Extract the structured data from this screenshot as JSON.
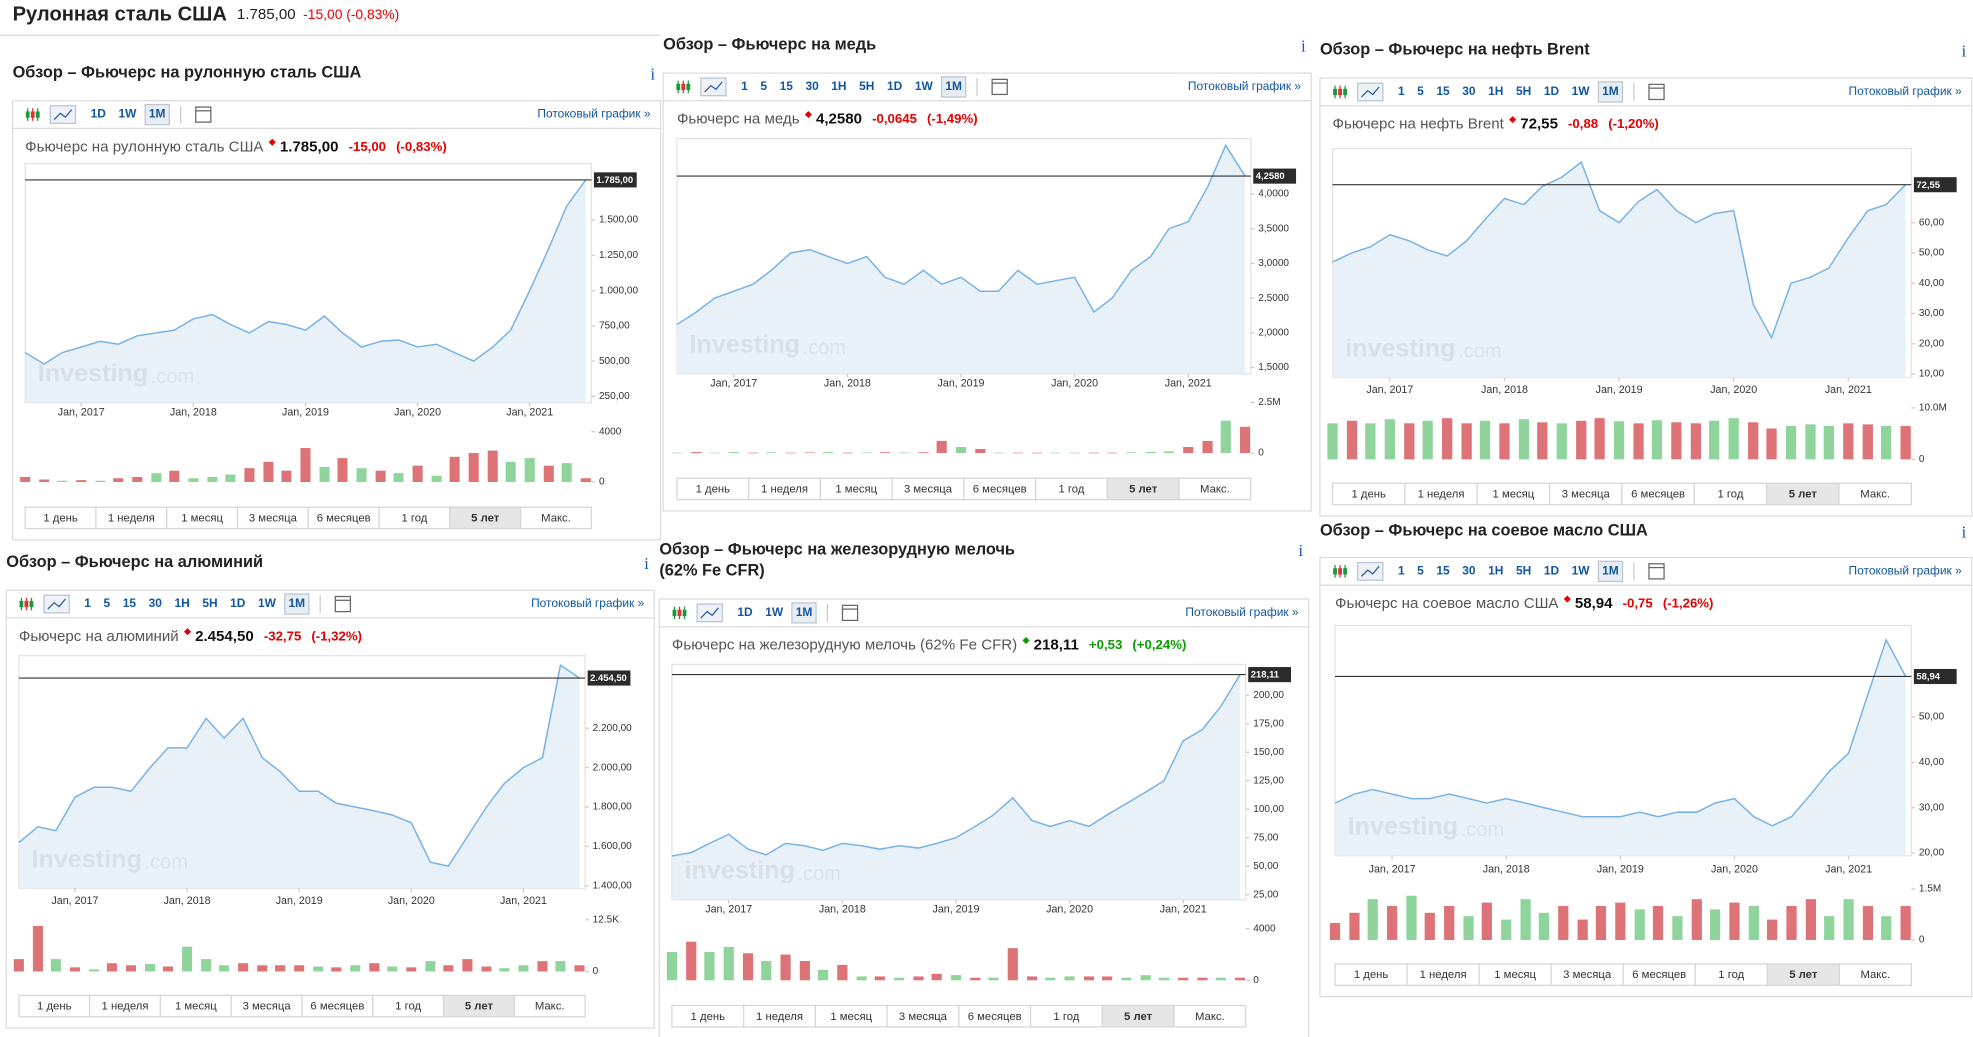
{
  "header": {
    "title": "Рулонная сталь США",
    "price": "1.785,00",
    "change": "-15,00 (-0,83%)"
  },
  "info_icon": "i",
  "streaming_label": "Потоковый график »",
  "watermark_suffix": ".com",
  "period_buttons": [
    "1 день",
    "1 неделя",
    "1 месяц",
    "3 месяца",
    "6 месяцев",
    "1 год",
    "5 лет",
    "Макс."
  ],
  "line_color": "#7ab3e3",
  "area_color": "#e4eef7",
  "up_color": "#8fd49b",
  "down_color": "#dd7376",
  "x": [
    2016.5,
    2016.67,
    2016.83,
    2017,
    2017.17,
    2017.33,
    2017.5,
    2017.67,
    2017.83,
    2018,
    2018.17,
    2018.33,
    2018.5,
    2018.67,
    2018.83,
    2019,
    2019.17,
    2019.33,
    2019.5,
    2019.67,
    2019.83,
    2020,
    2020.17,
    2020.33,
    2020.5,
    2020.67,
    2020.83,
    2021,
    2021.17,
    2021.33,
    2021.5
  ],
  "xlim": [
    2016.5,
    2021.55
  ],
  "xticks": [
    {
      "value": 2017,
      "label": "Jan, 2017"
    },
    {
      "value": 2018,
      "label": "Jan, 2018"
    },
    {
      "value": 2019,
      "label": "Jan, 2019"
    },
    {
      "value": 2020,
      "label": "Jan, 2020"
    },
    {
      "value": 2021,
      "label": "Jan, 2021"
    }
  ],
  "panels": [
    {
      "type": "line",
      "title_lines": [
        "Обзор – Фьючерс на рулонную сталь США"
      ],
      "intervals": [
        "1D",
        "1W",
        "1M"
      ],
      "watermark": "Investing",
      "quote": {
        "name": "Фьючерс на рулонную сталь США",
        "price": "1.785,00",
        "change": "-15,00",
        "percent": "(-0,83%)",
        "change_color": "#e40000"
      },
      "ylim": [
        205,
        1900
      ],
      "yticks": [
        {
          "value": 250,
          "label": "250,00"
        },
        {
          "value": 500,
          "label": "500,00"
        },
        {
          "value": 750,
          "label": "750,00"
        },
        {
          "value": 1000,
          "label": "1.000,00"
        },
        {
          "value": 1250,
          "label": "1.250,00"
        },
        {
          "value": 1500,
          "label": "1.500,00"
        }
      ],
      "values": [
        560,
        480,
        560,
        600,
        640,
        620,
        680,
        700,
        720,
        800,
        830,
        760,
        700,
        780,
        760,
        720,
        820,
        700,
        600,
        640,
        650,
        600,
        620,
        560,
        500,
        600,
        720,
        1000,
        1300,
        1600,
        1785
      ],
      "volume_ylim": [
        0,
        4500
      ],
      "volume_yticks": [
        0,
        4000
      ],
      "volume": [
        400,
        200,
        100,
        150,
        100,
        300,
        400,
        700,
        900,
        300,
        400,
        600,
        1100,
        1600,
        900,
        2700,
        1200,
        1900,
        1100,
        900,
        700,
        1300,
        500,
        2000,
        2300,
        2500,
        1600,
        1900,
        1300,
        1500,
        300
      ],
      "volume_direction": [
        "down",
        "down",
        "up",
        "down",
        "up",
        "down",
        "down",
        "up",
        "down",
        "up",
        "up",
        "up",
        "down",
        "down",
        "down",
        "down",
        "up",
        "down",
        "up",
        "down",
        "up",
        "down",
        "up",
        "down",
        "down",
        "down",
        "up",
        "up",
        "down",
        "up",
        "down"
      ]
    },
    {
      "type": "line",
      "title_lines": [
        "Обзор – Фьючерс на медь"
      ],
      "intervals": [
        "1",
        "5",
        "15",
        "30",
        "1H",
        "5H",
        "1D",
        "1W",
        "1M"
      ],
      "watermark": "Investing",
      "quote": {
        "name": "Фьючерс на медь",
        "price": "4,2580",
        "change": "-0,0645",
        "percent": "(-1,49%)",
        "change_color": "#e40000"
      },
      "ylim": [
        1.41,
        4.8
      ],
      "yticks": [
        {
          "value": 1.5,
          "label": "1,5000"
        },
        {
          "value": 2,
          "label": "2,0000"
        },
        {
          "value": 2.5,
          "label": "2,5000"
        },
        {
          "value": 3,
          "label": "3,0000"
        },
        {
          "value": 3.5,
          "label": "3,5000"
        },
        {
          "value": 4,
          "label": "4,0000"
        }
      ],
      "values": [
        2.12,
        2.3,
        2.5,
        2.6,
        2.7,
        2.9,
        3.15,
        3.2,
        3.1,
        3.0,
        3.1,
        2.8,
        2.7,
        2.9,
        2.7,
        2.8,
        2.6,
        2.6,
        2.9,
        2.7,
        2.75,
        2.8,
        2.3,
        2.5,
        2.9,
        3.1,
        3.5,
        3.6,
        4.1,
        4.7,
        4.258
      ],
      "volume_ylim": [
        0,
        2800000
      ],
      "volume_yticks": [
        0,
        {
          "value": 2500000,
          "label": "2.5M"
        }
      ],
      "volume": [
        20000,
        50000,
        20000,
        50000,
        20000,
        40000,
        20000,
        30000,
        50000,
        20000,
        30000,
        40000,
        30000,
        40000,
        600000,
        300000,
        200000,
        20000,
        20000,
        20000,
        20000,
        20000,
        20000,
        20000,
        40000,
        60000,
        80000,
        300000,
        600000,
        1600000,
        1300000
      ],
      "volume_direction": [
        "up",
        "down",
        "up",
        "up",
        "down",
        "up",
        "down",
        "down",
        "up",
        "down",
        "up",
        "down",
        "up",
        "down",
        "down",
        "up",
        "down",
        "up",
        "down",
        "down",
        "up",
        "up",
        "down",
        "down",
        "up",
        "up",
        "up",
        "down",
        "down",
        "up",
        "down"
      ]
    },
    {
      "type": "line",
      "title_lines": [
        "Обзор – Фьючерс на нефть Brent"
      ],
      "intervals": [
        "1",
        "5",
        "15",
        "30",
        "1H",
        "5H",
        "1D",
        "1W",
        "1M"
      ],
      "watermark": "investing",
      "quote": {
        "name": "Фьючерс на нефть Brent",
        "price": "72,55",
        "change": "-0,88",
        "percent": "(-1,20%)",
        "change_color": "#e40000"
      },
      "ylim": [
        8.8,
        84.5
      ],
      "yticks": [
        {
          "value": 10,
          "label": "10,00"
        },
        {
          "value": 20,
          "label": "20,00"
        },
        {
          "value": 30,
          "label": "30,00"
        },
        {
          "value": 40,
          "label": "40,00"
        },
        {
          "value": 50,
          "label": "50,00"
        },
        {
          "value": 60,
          "label": "60,00"
        }
      ],
      "values": [
        47,
        50,
        52,
        56,
        54,
        51,
        49,
        54,
        61,
        68,
        66,
        72,
        75,
        80,
        64,
        60,
        67,
        71,
        64,
        60,
        63,
        64,
        33,
        22,
        40,
        42,
        45,
        55,
        64,
        66,
        72.55
      ],
      "volume_ylim": [
        0,
        11000000
      ],
      "volume_yticks": [
        0,
        {
          "value": 10000000,
          "label": "10.0M"
        }
      ],
      "volume": [
        7000000,
        7500000,
        7000000,
        7800000,
        7000000,
        7500000,
        8000000,
        7000000,
        7500000,
        7000000,
        7800000,
        7200000,
        7000000,
        7500000,
        8000000,
        7400000,
        7000000,
        7600000,
        7200000,
        7000000,
        7500000,
        8000000,
        7200000,
        6000000,
        6500000,
        6800000,
        6500000,
        7000000,
        6800000,
        6500000,
        6500000
      ],
      "volume_direction": [
        "up",
        "down",
        "up",
        "up",
        "down",
        "up",
        "down",
        "down",
        "up",
        "down",
        "up",
        "down",
        "up",
        "down",
        "down",
        "up",
        "down",
        "up",
        "down",
        "down",
        "up",
        "up",
        "down",
        "down",
        "up",
        "up",
        "up",
        "down",
        "down",
        "up",
        "down"
      ]
    },
    {
      "type": "line",
      "title_lines": [
        "Обзор – Фьючерс на алюминий"
      ],
      "intervals": [
        "1",
        "5",
        "15",
        "30",
        "1H",
        "5H",
        "1D",
        "1W",
        "1M"
      ],
      "watermark": "Investing",
      "quote": {
        "name": "Фьючерс на алюминий",
        "price": "2.454,50",
        "change": "-32,75",
        "percent": "(-1,32%)",
        "change_color": "#e40000"
      },
      "ylim": [
        1387,
        2568
      ],
      "yticks": [
        {
          "value": 1400,
          "label": "1.400,00"
        },
        {
          "value": 1600,
          "label": "1.600,00"
        },
        {
          "value": 1800,
          "label": "1.800,00"
        },
        {
          "value": 2000,
          "label": "2.000,00"
        },
        {
          "value": 2200,
          "label": "2.200,00"
        }
      ],
      "values": [
        1620,
        1700,
        1680,
        1850,
        1900,
        1900,
        1880,
        2000,
        2100,
        2100,
        2250,
        2150,
        2250,
        2050,
        1980,
        1880,
        1880,
        1820,
        1800,
        1780,
        1760,
        1720,
        1520,
        1500,
        1650,
        1800,
        1920,
        2000,
        2050,
        2520,
        2454.5
      ],
      "volume_ylim": [
        0,
        14000
      ],
      "volume_yticks": [
        0,
        {
          "value": 12500,
          "label": "12.5K"
        }
      ],
      "volume": [
        3000,
        11000,
        3000,
        1000,
        500,
        2000,
        1500,
        1800,
        1200,
        6000,
        3000,
        1500,
        2000,
        1500,
        1500,
        1500,
        1200,
        1000,
        1500,
        2000,
        1200,
        1000,
        2500,
        1500,
        3000,
        1200,
        800,
        1500,
        2500,
        2500,
        1500
      ],
      "volume_direction": [
        "down",
        "down",
        "up",
        "down",
        "up",
        "down",
        "down",
        "up",
        "down",
        "up",
        "up",
        "up",
        "down",
        "down",
        "down",
        "down",
        "up",
        "down",
        "up",
        "down",
        "up",
        "down",
        "up",
        "down",
        "down",
        "down",
        "up",
        "up",
        "down",
        "up",
        "down"
      ]
    },
    {
      "type": "line",
      "title_lines": [
        "Обзор – Фьючерс на железорудную мелочь",
        "(62% Fe CFR)"
      ],
      "intervals": [
        "1D",
        "1W",
        "1M"
      ],
      "watermark": "investing",
      "quote": {
        "name": "Фьючерс на железорудную мелочь (62% Fe CFR)",
        "price": "218,11",
        "change": "+0,53",
        "percent": "(+0,24%)",
        "change_color": "#0a9d00"
      },
      "ylim": [
        20.6,
        227
      ],
      "yticks": [
        {
          "value": 25,
          "label": "25,00"
        },
        {
          "value": 50,
          "label": "50,00"
        },
        {
          "value": 75,
          "label": "75,00"
        },
        {
          "value": 100,
          "label": "100,00"
        },
        {
          "value": 125,
          "label": "125,00"
        },
        {
          "value": 150,
          "label": "150,00"
        },
        {
          "value": 175,
          "label": "175,00"
        },
        {
          "value": 200,
          "label": "200,00"
        }
      ],
      "values": [
        59,
        62,
        70,
        78,
        65,
        60,
        70,
        68,
        64,
        70,
        68,
        65,
        68,
        66,
        70,
        75,
        85,
        95,
        110,
        90,
        85,
        90,
        85,
        95,
        105,
        115,
        125,
        160,
        170,
        190,
        218.11
      ],
      "volume_ylim": [
        0,
        4500
      ],
      "volume_yticks": [
        0,
        4000
      ],
      "volume": [
        2200,
        3000,
        2200,
        2600,
        2100,
        1500,
        2000,
        1500,
        800,
        1200,
        300,
        300,
        200,
        300,
        500,
        400,
        200,
        200,
        2500,
        300,
        200,
        300,
        300,
        300,
        200,
        400,
        200,
        200,
        200,
        200,
        200
      ],
      "volume_direction": [
        "up",
        "down",
        "up",
        "up",
        "down",
        "up",
        "down",
        "down",
        "up",
        "down",
        "up",
        "down",
        "up",
        "down",
        "down",
        "up",
        "down",
        "up",
        "down",
        "down",
        "up",
        "up",
        "down",
        "down",
        "up",
        "up",
        "up",
        "down",
        "down",
        "up",
        "down"
      ]
    },
    {
      "type": "line",
      "title_lines": [
        "Обзор – Фьючерс на соевое масло США"
      ],
      "intervals": [
        "1",
        "5",
        "15",
        "30",
        "1H",
        "5H",
        "1D",
        "1W",
        "1M"
      ],
      "watermark": "Investing",
      "quote": {
        "name": "Фьючерс на соевое масло США",
        "price": "58,94",
        "change": "-0,75",
        "percent": "(-1,26%)",
        "change_color": "#e40000"
      },
      "ylim": [
        19.4,
        70.2
      ],
      "yticks": [
        {
          "value": 20,
          "label": "20,00"
        },
        {
          "value": 30,
          "label": "30,00"
        },
        {
          "value": 40,
          "label": "40,00"
        },
        {
          "value": 50,
          "label": "50,00"
        }
      ],
      "values": [
        31,
        33,
        34,
        33,
        32,
        32,
        33,
        32,
        31,
        32,
        31,
        30,
        29,
        28,
        28,
        28,
        29,
        28,
        29,
        29,
        31,
        32,
        28,
        26,
        28,
        33,
        38,
        42,
        55,
        67,
        58.94
      ],
      "volume_ylim": [
        0,
        1700000
      ],
      "volume_yticks": [
        0,
        {
          "value": 1500000,
          "label": "1.5M"
        }
      ],
      "volume": [
        500000,
        800000,
        1200000,
        1000000,
        1300000,
        800000,
        1000000,
        700000,
        1100000,
        600000,
        1200000,
        800000,
        1000000,
        600000,
        1000000,
        1100000,
        900000,
        1000000,
        700000,
        1200000,
        900000,
        1100000,
        1000000,
        600000,
        1000000,
        1200000,
        700000,
        1200000,
        1000000,
        700000,
        1000000
      ],
      "volume_direction": [
        "down",
        "down",
        "up",
        "down",
        "up",
        "down",
        "down",
        "up",
        "down",
        "up",
        "up",
        "up",
        "down",
        "down",
        "down",
        "down",
        "up",
        "down",
        "up",
        "down",
        "up",
        "down",
        "up",
        "down",
        "down",
        "down",
        "up",
        "up",
        "down",
        "up",
        "down"
      ]
    }
  ]
}
